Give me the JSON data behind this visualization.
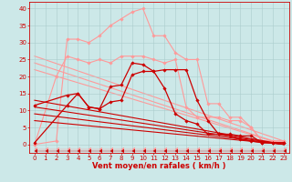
{
  "background_color": "#cce8e8",
  "grid_color": "#aacccc",
  "xlabel": "Vent moyen/en rafales ( km/h )",
  "xlabel_color": "#cc0000",
  "xlabel_fontsize": 6,
  "tick_color": "#cc0000",
  "tick_fontsize": 5,
  "xlim": [
    -0.5,
    23.5
  ],
  "ylim": [
    -2.5,
    42
  ],
  "yticks": [
    0,
    5,
    10,
    15,
    20,
    25,
    30,
    35,
    40
  ],
  "xticks": [
    0,
    1,
    2,
    3,
    4,
    5,
    6,
    7,
    8,
    9,
    10,
    11,
    12,
    13,
    14,
    15,
    16,
    17,
    18,
    19,
    20,
    21,
    22,
    23
  ],
  "lines": [
    {
      "x": [
        0,
        2,
        3,
        4,
        5,
        6,
        7,
        8,
        9,
        10,
        11,
        12,
        13,
        14,
        15,
        16,
        17,
        18,
        19,
        20,
        21,
        22,
        23
      ],
      "y": [
        0,
        20,
        26,
        25,
        24,
        25,
        24,
        26,
        26,
        26,
        25,
        24,
        25,
        11,
        8,
        8,
        8,
        7,
        7,
        5,
        1,
        1,
        1
      ],
      "color": "#ff9999",
      "lw": 0.8,
      "marker": "D",
      "ms": 1.8,
      "zorder": 2
    },
    {
      "x": [
        0,
        2,
        3,
        4,
        5,
        6,
        7,
        8,
        9,
        10,
        11,
        12,
        13,
        14,
        15,
        16,
        17,
        18,
        19,
        20,
        21,
        22,
        23
      ],
      "y": [
        0,
        1,
        31,
        31,
        30,
        32,
        35,
        37,
        39,
        40,
        32,
        32,
        27,
        25,
        25,
        12,
        12,
        8,
        8,
        5,
        1,
        1,
        1
      ],
      "color": "#ff9999",
      "lw": 0.8,
      "marker": "D",
      "ms": 1.8,
      "zorder": 2
    },
    {
      "x": [
        0,
        23
      ],
      "y": [
        26,
        1
      ],
      "color": "#ff9999",
      "lw": 0.8,
      "marker": null,
      "ms": 0,
      "zorder": 1
    },
    {
      "x": [
        0,
        23
      ],
      "y": [
        24,
        0
      ],
      "color": "#ff9999",
      "lw": 0.8,
      "marker": null,
      "ms": 0,
      "zorder": 1
    },
    {
      "x": [
        0,
        23
      ],
      "y": [
        22,
        0
      ],
      "color": "#ff9999",
      "lw": 0.8,
      "marker": null,
      "ms": 0,
      "zorder": 1
    },
    {
      "x": [
        0,
        3,
        4,
        5,
        6,
        7,
        8,
        9,
        10,
        11,
        12,
        13,
        14,
        15,
        16,
        17,
        18,
        19,
        20,
        21,
        22,
        23
      ],
      "y": [
        11.5,
        14.5,
        15,
        11,
        10.5,
        12.5,
        13,
        20.5,
        21.5,
        21.5,
        22,
        22,
        22,
        13,
        7,
        3,
        3,
        2.5,
        2.5,
        0.5,
        0.5,
        0.5
      ],
      "color": "#cc0000",
      "lw": 0.9,
      "marker": "D",
      "ms": 1.8,
      "zorder": 4
    },
    {
      "x": [
        0,
        3,
        4,
        5,
        6,
        7,
        8,
        9,
        10,
        11,
        12,
        13,
        14,
        15,
        16,
        17,
        18,
        19,
        20,
        21,
        22,
        23
      ],
      "y": [
        0.5,
        11.5,
        15,
        11,
        10.5,
        17,
        17.5,
        24,
        23.5,
        21.5,
        16.5,
        9,
        7,
        6,
        3,
        3,
        2.5,
        1.5,
        1,
        0.5,
        0.5,
        0.5
      ],
      "color": "#cc0000",
      "lw": 0.9,
      "marker": "D",
      "ms": 1.8,
      "zorder": 4
    },
    {
      "x": [
        0,
        23
      ],
      "y": [
        13,
        0
      ],
      "color": "#cc0000",
      "lw": 0.8,
      "marker": null,
      "ms": 0,
      "zorder": 3
    },
    {
      "x": [
        0,
        23
      ],
      "y": [
        11,
        0
      ],
      "color": "#cc0000",
      "lw": 0.8,
      "marker": null,
      "ms": 0,
      "zorder": 3
    },
    {
      "x": [
        0,
        23
      ],
      "y": [
        9,
        0
      ],
      "color": "#cc0000",
      "lw": 0.8,
      "marker": null,
      "ms": 0,
      "zorder": 3
    },
    {
      "x": [
        0,
        23
      ],
      "y": [
        7,
        0
      ],
      "color": "#cc0000",
      "lw": 0.8,
      "marker": null,
      "ms": 0,
      "zorder": 3
    },
    {
      "x": [
        0,
        1,
        2,
        3,
        4,
        5,
        6,
        7,
        8,
        9,
        10,
        11,
        12,
        13,
        14,
        15,
        16,
        17,
        18,
        19,
        20,
        21,
        22,
        23
      ],
      "y": [
        -1.5,
        -1.5,
        -1.5,
        -1.5,
        -1.5,
        -1.5,
        -1.5,
        -1.5,
        -1.5,
        -1.5,
        -1.5,
        -1.5,
        -1.5,
        -1.5,
        -1.5,
        -1.5,
        -1.5,
        -1.5,
        -1.5,
        -1.5,
        -1.5,
        -1.5,
        -1.5,
        -1.5
      ],
      "color": "#ff9999",
      "lw": 0.3,
      "marker": 4,
      "ms": 2.5,
      "zorder": 5
    },
    {
      "x": [
        0,
        1,
        2,
        3,
        4,
        5,
        6,
        7,
        8,
        9,
        10,
        11,
        12,
        13,
        14,
        15,
        16,
        17,
        18,
        19,
        20,
        21,
        22,
        23
      ],
      "y": [
        -2.0,
        -2.0,
        -2.0,
        -2.0,
        -2.0,
        -2.0,
        -2.0,
        -2.0,
        -2.0,
        -2.0,
        -2.0,
        -2.0,
        -2.0,
        -2.0,
        -2.0,
        -2.0,
        -2.0,
        -2.0,
        -2.0,
        -2.0,
        -2.0,
        -2.0,
        -2.0,
        -2.0
      ],
      "color": "#cc0000",
      "lw": 0.3,
      "marker": 4,
      "ms": 2.5,
      "zorder": 5
    }
  ]
}
